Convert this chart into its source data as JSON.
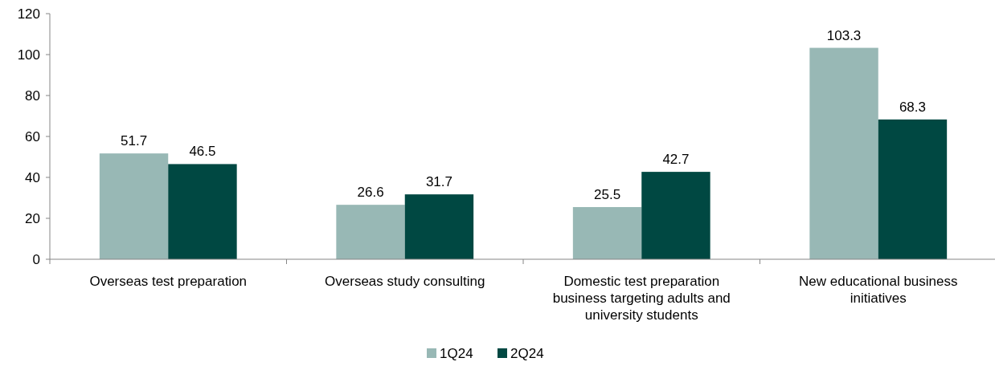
{
  "chart_data": {
    "type": "bar",
    "categories": [
      "Overseas test preparation",
      "Overseas study consulting",
      "Domestic test preparation business targeting adults and university students",
      "New educational business initiatives"
    ],
    "series": [
      {
        "name": "1Q24",
        "color": "#98b8b5",
        "values": [
          51.7,
          26.6,
          25.5,
          103.3
        ]
      },
      {
        "name": "2Q24",
        "color": "#004842",
        "values": [
          46.5,
          31.7,
          42.7,
          68.3
        ]
      }
    ],
    "ylim": [
      0,
      120
    ],
    "yticks": [
      0,
      20,
      40,
      60,
      80,
      100,
      120
    ],
    "data_labels": true,
    "grid": false,
    "legend": "bottom"
  }
}
